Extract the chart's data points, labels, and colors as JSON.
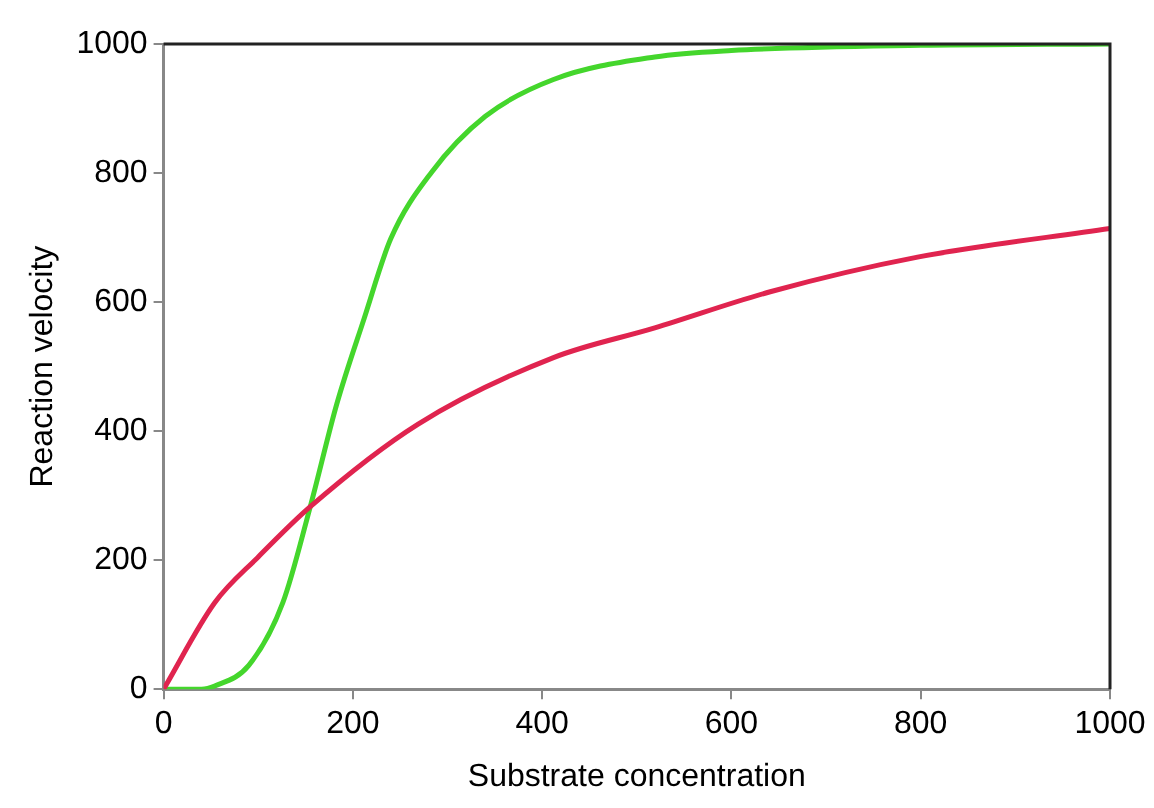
{
  "chart_data": {
    "type": "line",
    "xlabel": "Substrate concentration",
    "ylabel": "Reaction velocity",
    "xlim": [
      0,
      1000
    ],
    "ylim": [
      0,
      1000
    ],
    "xticks": [
      0,
      200,
      400,
      600,
      800,
      1000
    ],
    "yticks": [
      0,
      200,
      400,
      600,
      800,
      1000
    ],
    "grid": false,
    "legend": false,
    "marker": "none",
    "line_style": "solid",
    "series": [
      {
        "color": "#e0244f",
        "x": [
          0,
          54,
          100,
          155,
          269,
          412,
          519,
          641,
          798,
          1000
        ],
        "values": [
          0,
          134,
          205,
          283,
          411,
          514,
          560,
          616,
          670,
          714
        ]
      },
      {
        "color": "#44d62c",
        "x": [
          0,
          40,
          54,
          90,
          126,
          155,
          183,
          212,
          240,
          283,
          340,
          412,
          519,
          600,
          800,
          1000
        ],
        "values": [
          0,
          0,
          5,
          37,
          134,
          283,
          442,
          575,
          698,
          801,
          888,
          945,
          980,
          990,
          998,
          1000
        ]
      }
    ]
  }
}
